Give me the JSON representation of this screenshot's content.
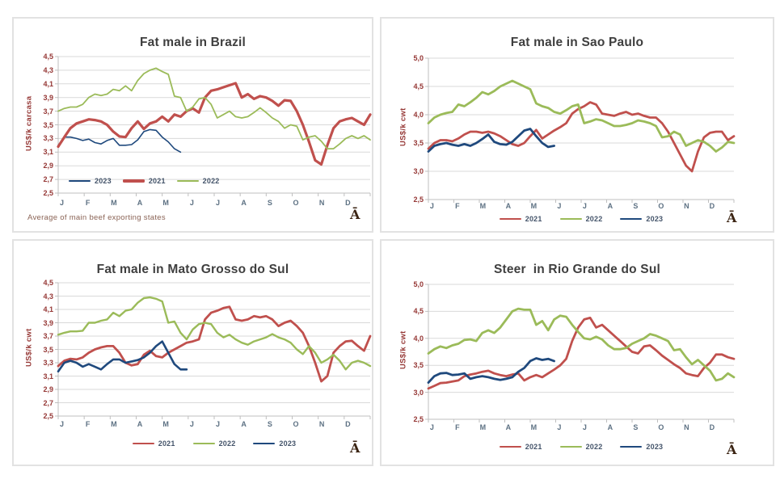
{
  "ui": {
    "logo_glyph": "Ā",
    "colors": {
      "red": "#C0504D",
      "green": "#9BBB59",
      "blue": "#1F497D",
      "grid": "#D9D9D9",
      "axis": "#BFBFBF",
      "y_tick_text": "#953735",
      "x_tick_text": "#5D7183",
      "title_text": "#3F3F3F",
      "note_text": "#8A6355",
      "legend_text": "#44546A",
      "panel_border": "#E2E2E2"
    }
  },
  "months": [
    "J",
    "F",
    "M",
    "A",
    "M",
    "J",
    "J",
    "A",
    "S",
    "O",
    "N",
    "D"
  ],
  "chart_data": [
    {
      "type": "line",
      "title": "Fat male in Brazil",
      "ylabel": "US$/k carcasa",
      "note": "Average of main beef exporting states",
      "ylim": [
        2.5,
        4.5
      ],
      "y_tick_labels": [
        "4,5",
        "4,3",
        "4,1",
        "3,9",
        "3,7",
        "3,5",
        "3,3",
        "3,1",
        "2,9",
        "2,7",
        "2,5"
      ],
      "y_tick_values": [
        4.5,
        4.3,
        4.1,
        3.9,
        3.7,
        3.5,
        3.3,
        3.1,
        2.9,
        2.7,
        2.5
      ],
      "x_categories": [
        "J",
        "F",
        "M",
        "A",
        "M",
        "J",
        "J",
        "A",
        "S",
        "O",
        "N",
        "D"
      ],
      "points_per_full_year": 52,
      "grid": true,
      "legend_position": "inside-bottom",
      "series": [
        {
          "name": "2023",
          "color_key": "blue",
          "width": 1.6,
          "values": [
            3.2,
            3.32,
            3.32,
            3.3,
            3.27,
            3.29,
            3.24,
            3.22,
            3.27,
            3.3,
            3.2,
            3.2,
            3.21,
            3.28,
            3.4,
            3.43,
            3.42,
            3.32,
            3.25,
            3.15,
            3.1
          ]
        },
        {
          "name": "2021",
          "color_key": "red",
          "width": 3.2,
          "values": [
            3.18,
            3.32,
            3.45,
            3.52,
            3.55,
            3.58,
            3.57,
            3.55,
            3.5,
            3.4,
            3.33,
            3.32,
            3.45,
            3.55,
            3.44,
            3.52,
            3.55,
            3.62,
            3.55,
            3.65,
            3.62,
            3.7,
            3.74,
            3.68,
            3.9,
            4.0,
            4.02,
            4.05,
            4.08,
            4.11,
            3.9,
            3.95,
            3.88,
            3.92,
            3.9,
            3.85,
            3.78,
            3.86,
            3.85,
            3.7,
            3.5,
            3.25,
            2.98,
            2.92,
            3.2,
            3.45,
            3.55,
            3.58,
            3.6,
            3.55,
            3.5,
            3.65
          ]
        },
        {
          "name": "2022",
          "color_key": "green",
          "width": 1.8,
          "values": [
            3.7,
            3.74,
            3.76,
            3.76,
            3.8,
            3.9,
            3.95,
            3.93,
            3.95,
            4.02,
            4.0,
            4.07,
            4.0,
            4.15,
            4.25,
            4.3,
            4.33,
            4.28,
            4.24,
            3.92,
            3.9,
            3.7,
            3.76,
            3.88,
            3.9,
            3.8,
            3.6,
            3.65,
            3.7,
            3.62,
            3.6,
            3.62,
            3.68,
            3.75,
            3.68,
            3.6,
            3.55,
            3.45,
            3.5,
            3.48,
            3.28,
            3.32,
            3.34,
            3.26,
            3.15,
            3.15,
            3.22,
            3.3,
            3.34,
            3.3,
            3.34,
            3.28
          ]
        }
      ]
    },
    {
      "type": "line",
      "title": "Fat male in Sao Paulo",
      "ylabel": "US$/k cwt",
      "ylim": [
        2.5,
        5.0
      ],
      "y_tick_labels": [
        "5,0",
        "4,5",
        "4,0",
        "3,5",
        "3,0",
        "2,5"
      ],
      "y_tick_values": [
        5.0,
        4.5,
        4.0,
        3.5,
        3.0,
        2.5
      ],
      "x_categories": [
        "J",
        "F",
        "M",
        "A",
        "M",
        "J",
        "J",
        "A",
        "S",
        "O",
        "N",
        "D"
      ],
      "points_per_full_year": 52,
      "grid": true,
      "legend_position": "below",
      "series": [
        {
          "name": "2021",
          "color_key": "red",
          "width": 2.8,
          "values": [
            3.4,
            3.5,
            3.55,
            3.55,
            3.53,
            3.58,
            3.65,
            3.7,
            3.7,
            3.68,
            3.7,
            3.67,
            3.62,
            3.55,
            3.48,
            3.45,
            3.5,
            3.62,
            3.73,
            3.58,
            3.65,
            3.72,
            3.78,
            3.85,
            4.02,
            4.1,
            4.15,
            4.22,
            4.18,
            4.02,
            4.0,
            3.98,
            4.02,
            4.05,
            4.0,
            4.02,
            3.98,
            3.95,
            3.95,
            3.85,
            3.7,
            3.5,
            3.3,
            3.1,
            3.0,
            3.35,
            3.6,
            3.68,
            3.7,
            3.7,
            3.55,
            3.62
          ]
        },
        {
          "name": "2022",
          "color_key": "green",
          "width": 2.8,
          "values": [
            3.85,
            3.95,
            4.0,
            4.03,
            4.05,
            4.18,
            4.15,
            4.22,
            4.3,
            4.4,
            4.36,
            4.42,
            4.5,
            4.55,
            4.6,
            4.55,
            4.5,
            4.45,
            4.2,
            4.15,
            4.12,
            4.05,
            4.02,
            4.08,
            4.15,
            4.18,
            3.85,
            3.88,
            3.92,
            3.9,
            3.85,
            3.8,
            3.8,
            3.82,
            3.85,
            3.9,
            3.88,
            3.85,
            3.8,
            3.6,
            3.62,
            3.7,
            3.65,
            3.45,
            3.5,
            3.55,
            3.52,
            3.45,
            3.35,
            3.42,
            3.52,
            3.5
          ]
        },
        {
          "name": "2023",
          "color_key": "blue",
          "width": 2.8,
          "values": [
            3.35,
            3.45,
            3.48,
            3.5,
            3.47,
            3.45,
            3.48,
            3.45,
            3.5,
            3.57,
            3.65,
            3.52,
            3.48,
            3.47,
            3.52,
            3.62,
            3.72,
            3.75,
            3.62,
            3.5,
            3.43,
            3.45
          ]
        }
      ]
    },
    {
      "type": "line",
      "title": "Fat male in Mato Grosso do Sul",
      "ylabel": "US$/k cwt",
      "ylim": [
        2.5,
        4.5
      ],
      "y_tick_labels": [
        "4,5",
        "4,3",
        "4,1",
        "3,9",
        "3,7",
        "3,5",
        "3,3",
        "3,1",
        "2,9",
        "2,7",
        "2,5"
      ],
      "y_tick_values": [
        4.5,
        4.3,
        4.1,
        3.9,
        3.7,
        3.5,
        3.3,
        3.1,
        2.9,
        2.7,
        2.5
      ],
      "x_categories": [
        "J",
        "F",
        "M",
        "A",
        "M",
        "J",
        "J",
        "A",
        "S",
        "O",
        "N",
        "D"
      ],
      "points_per_full_year": 52,
      "grid": true,
      "legend_position": "below",
      "series": [
        {
          "name": "2021",
          "color_key": "red",
          "width": 2.8,
          "values": [
            3.25,
            3.33,
            3.36,
            3.35,
            3.38,
            3.45,
            3.5,
            3.53,
            3.55,
            3.55,
            3.45,
            3.3,
            3.26,
            3.28,
            3.42,
            3.48,
            3.4,
            3.38,
            3.45,
            3.5,
            3.55,
            3.6,
            3.62,
            3.65,
            3.95,
            4.05,
            4.08,
            4.12,
            4.14,
            3.95,
            3.93,
            3.95,
            4.0,
            3.98,
            4.0,
            3.95,
            3.85,
            3.9,
            3.93,
            3.85,
            3.75,
            3.55,
            3.3,
            3.02,
            3.1,
            3.45,
            3.55,
            3.62,
            3.63,
            3.55,
            3.48,
            3.7
          ]
        },
        {
          "name": "2022",
          "color_key": "green",
          "width": 2.4,
          "values": [
            3.72,
            3.75,
            3.77,
            3.77,
            3.78,
            3.9,
            3.9,
            3.93,
            3.95,
            4.05,
            4.0,
            4.08,
            4.1,
            4.2,
            4.27,
            4.28,
            4.26,
            4.22,
            3.9,
            3.92,
            3.75,
            3.65,
            3.8,
            3.88,
            3.9,
            3.88,
            3.75,
            3.68,
            3.72,
            3.65,
            3.6,
            3.57,
            3.62,
            3.65,
            3.68,
            3.73,
            3.68,
            3.65,
            3.6,
            3.5,
            3.43,
            3.55,
            3.45,
            3.3,
            3.35,
            3.42,
            3.33,
            3.2,
            3.3,
            3.33,
            3.3,
            3.25
          ]
        },
        {
          "name": "2023",
          "color_key": "blue",
          "width": 2.6,
          "values": [
            3.17,
            3.3,
            3.33,
            3.3,
            3.24,
            3.28,
            3.24,
            3.2,
            3.28,
            3.35,
            3.35,
            3.3,
            3.32,
            3.34,
            3.38,
            3.45,
            3.55,
            3.62,
            3.45,
            3.28,
            3.2,
            3.2
          ]
        }
      ]
    },
    {
      "type": "line",
      "title": "Steer  in Rio Grande do Sul",
      "ylabel": "US$/k cwt",
      "ylim": [
        2.5,
        5.0
      ],
      "y_tick_labels": [
        "5,0",
        "4,5",
        "4,0",
        "3,5",
        "3,0",
        "2,5"
      ],
      "y_tick_values": [
        5.0,
        4.5,
        4.0,
        3.5,
        3.0,
        2.5
      ],
      "x_categories": [
        "J",
        "F",
        "M",
        "A",
        "M",
        "J",
        "J",
        "A",
        "S",
        "O",
        "N",
        "D"
      ],
      "points_per_full_year": 52,
      "grid": true,
      "legend_position": "below",
      "series": [
        {
          "name": "2021",
          "color_key": "red",
          "width": 2.8,
          "values": [
            3.07,
            3.12,
            3.17,
            3.18,
            3.2,
            3.22,
            3.3,
            3.33,
            3.35,
            3.38,
            3.4,
            3.35,
            3.32,
            3.3,
            3.33,
            3.35,
            3.22,
            3.28,
            3.32,
            3.28,
            3.35,
            3.42,
            3.5,
            3.62,
            3.95,
            4.2,
            4.35,
            4.38,
            4.2,
            4.25,
            4.15,
            4.05,
            3.95,
            3.85,
            3.75,
            3.72,
            3.85,
            3.87,
            3.78,
            3.68,
            3.6,
            3.52,
            3.45,
            3.35,
            3.32,
            3.3,
            3.45,
            3.55,
            3.7,
            3.7,
            3.65,
            3.62
          ]
        },
        {
          "name": "2022",
          "color_key": "green",
          "width": 2.8,
          "values": [
            3.72,
            3.8,
            3.85,
            3.82,
            3.87,
            3.9,
            3.97,
            3.98,
            3.95,
            4.1,
            4.15,
            4.1,
            4.2,
            4.35,
            4.5,
            4.55,
            4.53,
            4.53,
            4.25,
            4.32,
            4.15,
            4.35,
            4.42,
            4.4,
            4.25,
            4.12,
            4.0,
            3.98,
            4.03,
            3.98,
            3.87,
            3.8,
            3.8,
            3.82,
            3.9,
            3.95,
            4.0,
            4.08,
            4.05,
            4.0,
            3.95,
            3.78,
            3.8,
            3.65,
            3.52,
            3.6,
            3.5,
            3.4,
            3.22,
            3.25,
            3.35,
            3.28
          ]
        },
        {
          "name": "2023",
          "color_key": "blue",
          "width": 2.8,
          "values": [
            3.18,
            3.3,
            3.35,
            3.36,
            3.32,
            3.33,
            3.35,
            3.25,
            3.28,
            3.3,
            3.28,
            3.25,
            3.23,
            3.25,
            3.28,
            3.38,
            3.45,
            3.58,
            3.63,
            3.6,
            3.62,
            3.58
          ]
        }
      ]
    }
  ]
}
